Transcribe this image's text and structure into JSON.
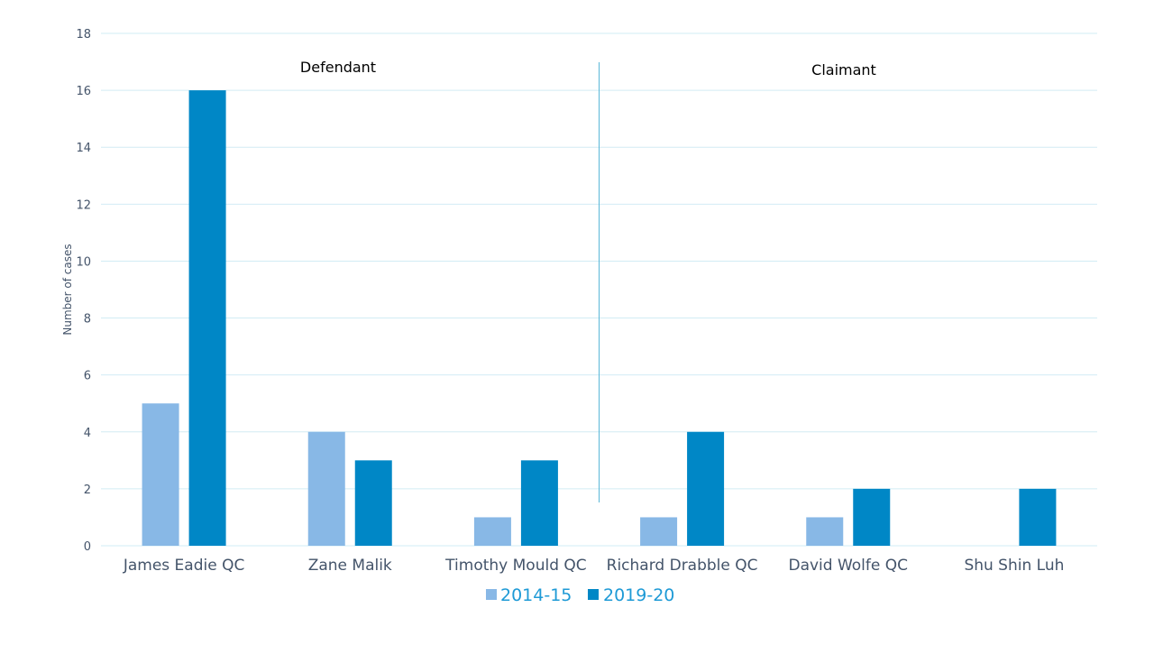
{
  "chart_data": {
    "type": "bar",
    "ylabel": "Number  of cases",
    "ylim": [
      0,
      18
    ],
    "y_ticks": [
      0,
      2,
      4,
      6,
      8,
      10,
      12,
      14,
      16,
      18
    ],
    "grid": true,
    "categories": [
      "James Eadie QC",
      "Zane Malik",
      "Timothy Mould QC",
      "Richard Drabble QC",
      "David Wolfe QC",
      "Shu Shin Luh"
    ],
    "series": [
      {
        "name": "2014-15",
        "color": "#88b8e6",
        "values": [
          5,
          4,
          1,
          1,
          1,
          0
        ]
      },
      {
        "name": "2019-20",
        "color": "#0087c6",
        "values": [
          16,
          3,
          3,
          4,
          2,
          2
        ]
      }
    ],
    "groups": [
      {
        "label": "Defendant",
        "categories": [
          "James Eadie QC",
          "Zane Malik",
          "Timothy Mould QC"
        ]
      },
      {
        "label": "Claimant",
        "categories": [
          "Richard Drabble QC",
          "David Wolfe QC",
          "Shu Shin Luh"
        ]
      }
    ],
    "legend_position": "bottom",
    "colors": {
      "grid": "#d2ecf4",
      "divider": "#5bb8d8",
      "tick_text": "#44546a",
      "legend_text": "#1e9ad6"
    }
  }
}
